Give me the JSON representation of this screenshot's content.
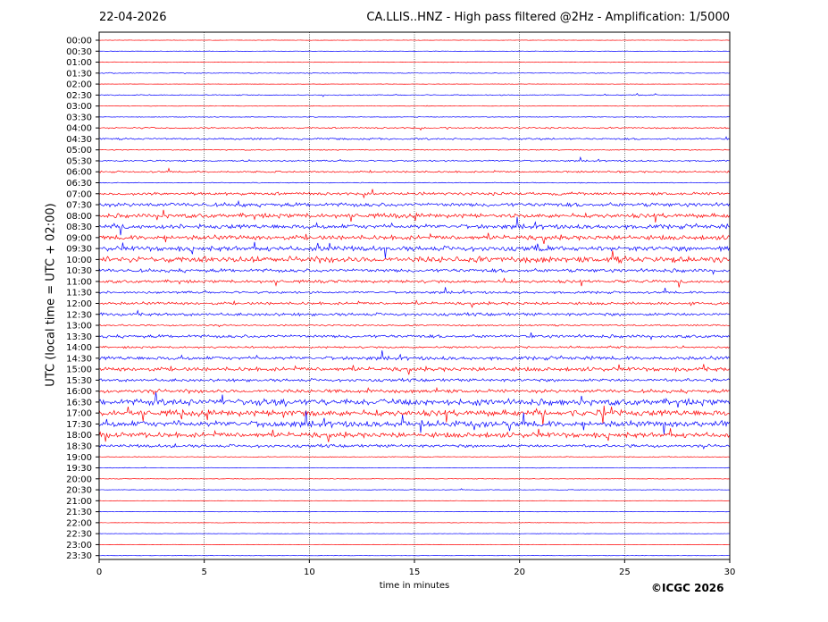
{
  "header": {
    "date": "22-04-2026",
    "title": "CA.LLIS..HNZ - High pass filtered @2Hz - Amplification: 1/5000"
  },
  "footer": {
    "copyright": "©ICGC 2026"
  },
  "chart_data": {
    "type": "line",
    "subtype": "helicorder",
    "xlabel": "time in minutes",
    "ylabel": "UTC (local time = UTC + 02:00)",
    "xlim": [
      0,
      30
    ],
    "x_ticks": [
      0,
      5,
      10,
      15,
      20,
      25,
      30
    ],
    "grid": "vertical dotted lines at 5-minute intervals",
    "trace_colors": [
      "#ff0000",
      "#0000ff"
    ],
    "rows": [
      {
        "label": "00:00",
        "activity": 0.2
      },
      {
        "label": "00:30",
        "activity": 0.2
      },
      {
        "label": "01:00",
        "activity": 0.3
      },
      {
        "label": "01:30",
        "activity": 0.4
      },
      {
        "label": "02:00",
        "activity": 0.2
      },
      {
        "label": "02:30",
        "activity": 0.5
      },
      {
        "label": "03:00",
        "activity": 0.3
      },
      {
        "label": "03:30",
        "activity": 0.3
      },
      {
        "label": "04:00",
        "activity": 0.8
      },
      {
        "label": "04:30",
        "activity": 0.9
      },
      {
        "label": "05:00",
        "activity": 0.5
      },
      {
        "label": "05:30",
        "activity": 0.8
      },
      {
        "label": "06:00",
        "activity": 0.9
      },
      {
        "label": "06:30",
        "activity": 0.4
      },
      {
        "label": "07:00",
        "activity": 1.5
      },
      {
        "label": "07:30",
        "activity": 2.0
      },
      {
        "label": "08:00",
        "activity": 2.2
      },
      {
        "label": "08:30",
        "activity": 2.2
      },
      {
        "label": "09:00",
        "activity": 2.3
      },
      {
        "label": "09:30",
        "activity": 2.5
      },
      {
        "label": "10:00",
        "activity": 3.0
      },
      {
        "label": "10:30",
        "activity": 1.8
      },
      {
        "label": "11:00",
        "activity": 1.5
      },
      {
        "label": "11:30",
        "activity": 1.2
      },
      {
        "label": "12:00",
        "activity": 1.4
      },
      {
        "label": "12:30",
        "activity": 1.5
      },
      {
        "label": "13:00",
        "activity": 0.8
      },
      {
        "label": "13:30",
        "activity": 1.6
      },
      {
        "label": "14:00",
        "activity": 1.0
      },
      {
        "label": "14:30",
        "activity": 1.8
      },
      {
        "label": "15:00",
        "activity": 2.0
      },
      {
        "label": "15:30",
        "activity": 1.5
      },
      {
        "label": "16:00",
        "activity": 1.8
      },
      {
        "label": "16:30",
        "activity": 3.2
      },
      {
        "label": "17:00",
        "activity": 3.0
      },
      {
        "label": "17:30",
        "activity": 3.0
      },
      {
        "label": "18:00",
        "activity": 2.6
      },
      {
        "label": "18:30",
        "activity": 1.5
      },
      {
        "label": "19:00",
        "activity": 0.4
      },
      {
        "label": "19:30",
        "activity": 0.3
      },
      {
        "label": "20:00",
        "activity": 0.3
      },
      {
        "label": "20:30",
        "activity": 0.3
      },
      {
        "label": "21:00",
        "activity": 0.2
      },
      {
        "label": "21:30",
        "activity": 0.2
      },
      {
        "label": "22:00",
        "activity": 0.2
      },
      {
        "label": "22:30",
        "activity": 0.2
      },
      {
        "label": "23:00",
        "activity": 0.2
      },
      {
        "label": "23:30",
        "activity": 0.2
      }
    ]
  }
}
